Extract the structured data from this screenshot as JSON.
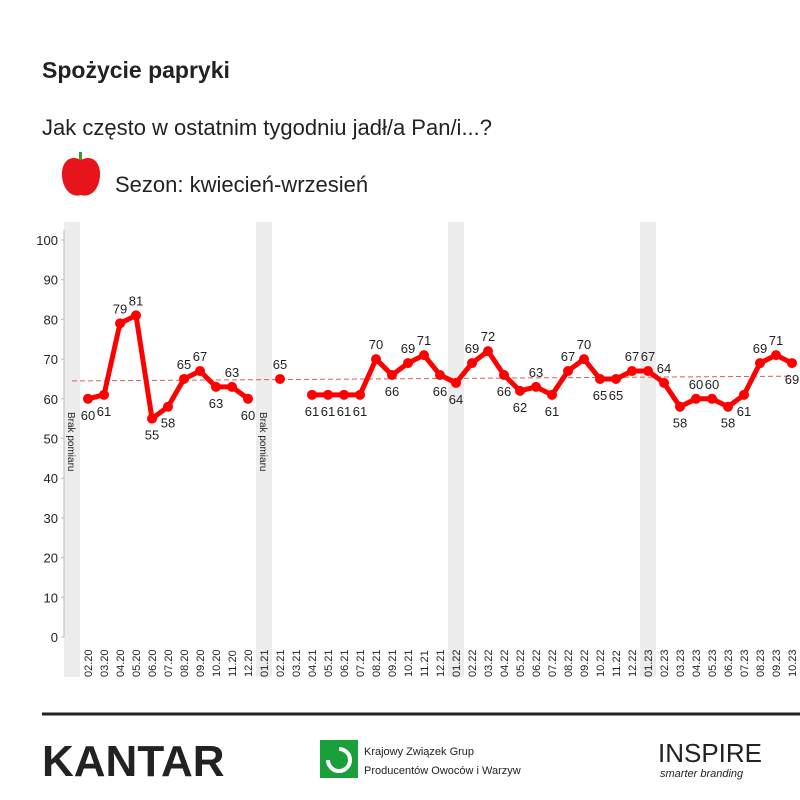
{
  "chart_data": {
    "type": "line",
    "title": "Spożycie papryki",
    "subtitle": "Jak często w ostatnim tygodniu jadł/a Pan/i...?",
    "legend_label": "Sezon: kwiecień-wrzesień",
    "missing_labels": [
      "Brak pomiaru",
      "Brak pomiaru"
    ],
    "categories": [
      null,
      "02.20",
      "03.20",
      "04.20",
      "05.20",
      "06.20",
      "07.20",
      "08.20",
      "09.20",
      "10.20",
      "11.20",
      "12.20",
      "01.21",
      "02.21",
      "03.21",
      "04.21",
      "05.21",
      "06.21",
      "07.21",
      "08.21",
      "09.21",
      "10.21",
      "11.21",
      "12.21",
      "01.22",
      "02.22",
      "03.22",
      "04.22",
      "05.22",
      "06.22",
      "07.22",
      "08.22",
      "09.22",
      "10.22",
      "11.22",
      "12.22",
      "01.23",
      "02.23",
      "03.23",
      "04.23",
      "05.23",
      "06.23",
      "07.23",
      "08.23",
      "09.23",
      "10.23"
    ],
    "series": [
      {
        "name": "Spożycie papryki",
        "color": "#ff0000",
        "values": [
          null,
          60,
          61,
          79,
          81,
          55,
          58,
          65,
          67,
          63,
          63,
          60,
          null,
          65,
          null,
          61,
          61,
          61,
          61,
          70,
          66,
          69,
          71,
          66,
          64,
          69,
          72,
          66,
          62,
          63,
          61,
          67,
          70,
          65,
          65,
          67,
          67,
          64,
          58,
          60,
          60,
          58,
          61,
          69,
          71,
          69
        ]
      }
    ],
    "trend": {
      "start": 64.5,
      "end": 65.7,
      "color": "#e05a5a"
    },
    "ylim": [
      0,
      100
    ],
    "yticks": [
      0,
      10,
      20,
      30,
      40,
      50,
      60,
      70,
      80,
      90,
      100
    ],
    "grid": false
  },
  "footer": {
    "logos": [
      "KANTAR",
      "Krajowy Związek Grup",
      "Producentów Owoców i Warzyw",
      "INSPIRE",
      "smarter branding"
    ]
  }
}
